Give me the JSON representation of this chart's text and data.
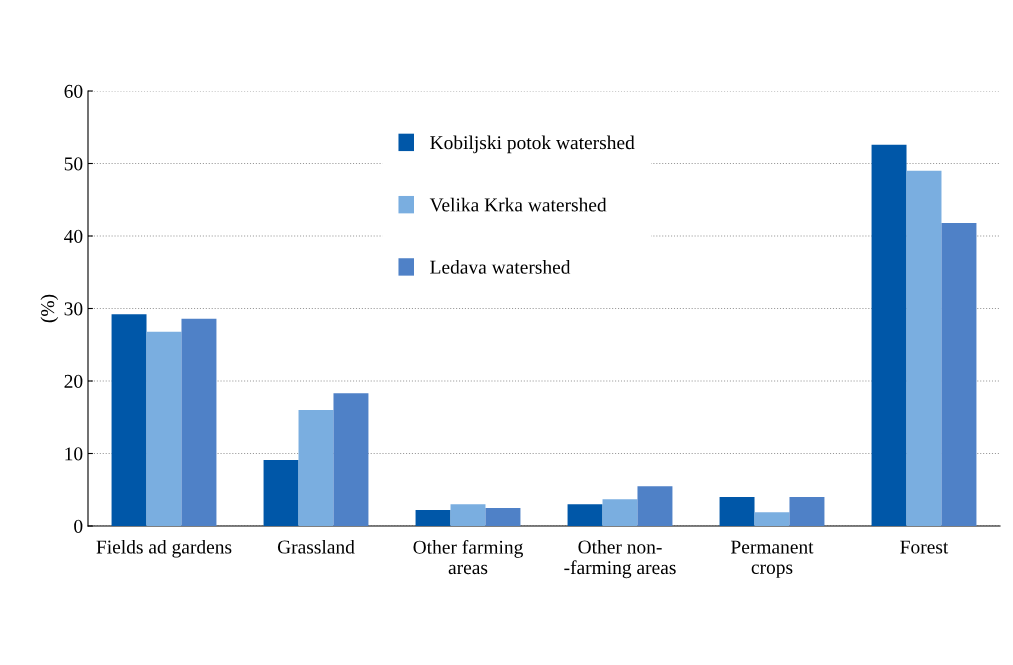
{
  "chart_data": {
    "type": "bar",
    "ylabel": "(%)",
    "categories": [
      "Fields ad gardens",
      "Grassland",
      "Other farming\nareas",
      "Other non-\n-farming areas",
      "Permanent\ncrops",
      "Forest"
    ],
    "series": [
      {
        "name": "Kobiljski potok watershed",
        "color": "#0057a8",
        "values": [
          29.2,
          9.1,
          2.2,
          3.0,
          4.0,
          52.6
        ]
      },
      {
        "name": "Velika Krka watershed",
        "color": "#7aaee0",
        "values": [
          26.8,
          16.0,
          3.0,
          3.7,
          1.9,
          49.0
        ]
      },
      {
        "name": "Ledava watershed",
        "color": "#4f81c7",
        "values": [
          28.6,
          18.3,
          2.5,
          5.5,
          4.0,
          41.8
        ]
      }
    ],
    "ylim": [
      0,
      60
    ],
    "yticks": [
      0,
      10,
      20,
      30,
      40,
      50,
      60
    ],
    "grid": "y",
    "legend": "top"
  }
}
